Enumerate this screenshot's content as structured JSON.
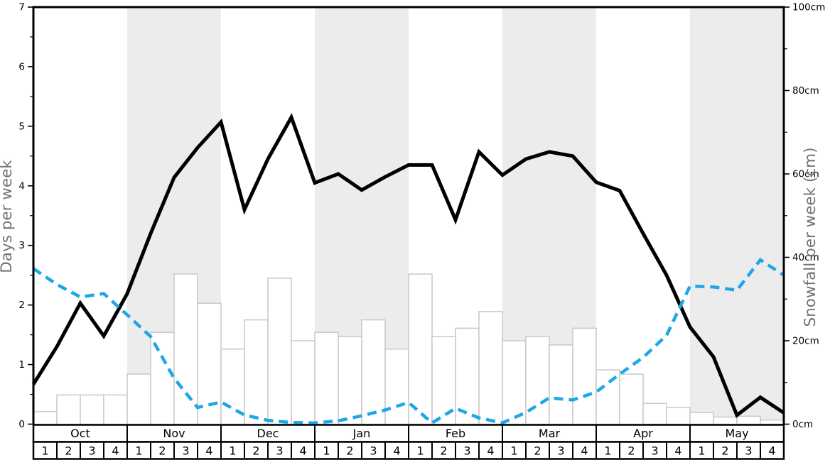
{
  "colors": {
    "line_black": "#000000",
    "line_blue": "#1ea7e6",
    "month_band": "#ececec",
    "bar_fill": "#ffffff",
    "bar_border": "#c8c8c8",
    "axis_title": "#737373",
    "tick_label": "#000000",
    "table_border": "#000000"
  },
  "chart_data": {
    "type": "composite",
    "subtype": "bar+line, dual axis, weekly seasonal snow chart",
    "months": [
      "Oct",
      "Nov",
      "Dec",
      "Jan",
      "Feb",
      "Mar",
      "Apr",
      "May"
    ],
    "weeks_per_month": [
      "1",
      "2",
      "3",
      "4"
    ],
    "shaded_month_indices": [
      1,
      3,
      5,
      7
    ],
    "left_axis": {
      "label": "Days per week",
      "min": 0,
      "max": 7,
      "major_tick_step": 1,
      "minor_tick_step": 0.5,
      "tick_labels": [
        "0",
        "1",
        "2",
        "3",
        "4",
        "5",
        "6",
        "7"
      ]
    },
    "right_axis": {
      "label": "Snowfall per week (cm)",
      "min": 0,
      "max": 100,
      "major_tick_step": 20,
      "minor_tick_step": 10,
      "tick_labels": [
        "0cm",
        "20cm",
        "40cm",
        "60cm",
        "80cm",
        "100cm"
      ]
    },
    "series": [
      {
        "name": "days-per-week-line",
        "type": "line",
        "style": "solid",
        "axis": "left",
        "color": "#000000",
        "values": [
          0.67,
          1.3,
          2.03,
          1.48,
          2.19,
          3.2,
          4.14,
          4.64,
          5.07,
          3.6,
          4.45,
          5.15,
          4.05,
          4.2,
          3.93,
          4.15,
          4.35,
          4.35,
          3.43,
          4.57,
          4.18,
          4.45,
          4.57,
          4.5,
          4.06,
          3.92,
          3.2,
          2.5,
          1.63,
          1.13,
          0.15,
          0.45,
          0.19
        ]
      },
      {
        "name": "snowfall-cm-dashed-line",
        "type": "line",
        "style": "dashed",
        "axis": "right",
        "color": "#1ea7e6",
        "values": [
          37.3,
          33.5,
          30.5,
          31.3,
          26.2,
          21,
          11,
          4,
          5.3,
          2.2,
          0.9,
          0.4,
          0.3,
          0.8,
          2,
          3.4,
          5.2,
          0.3,
          3.8,
          1.5,
          0.3,
          2.8,
          6.3,
          5.8,
          7.7,
          12,
          16,
          21.3,
          33.1,
          32.9,
          32.1,
          39.4,
          35.7
        ]
      },
      {
        "name": "snowfall-cm-bars",
        "type": "bar",
        "axis": "right",
        "values": [
          3,
          7,
          7,
          7,
          12,
          22,
          36,
          29,
          18,
          25,
          35,
          20,
          22,
          21,
          25,
          18,
          36,
          21,
          23,
          27,
          20,
          21,
          19,
          23,
          13,
          12,
          5,
          4,
          2.8,
          1.7,
          1.9,
          1
        ]
      }
    ],
    "layout": {
      "grid": "off",
      "legend": "none",
      "x_axis_style": "two-row table: month names over week numbers 1-4"
    }
  }
}
